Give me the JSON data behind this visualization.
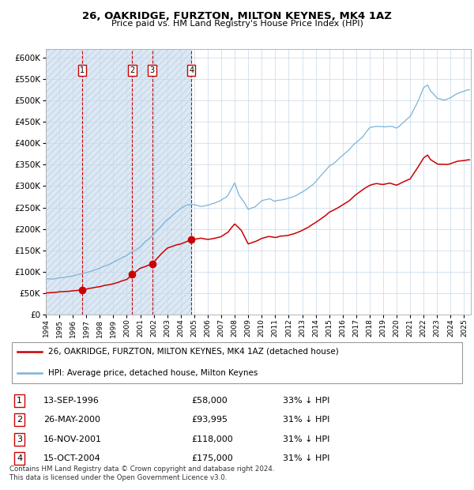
{
  "title1": "26, OAKRIDGE, FURZTON, MILTON KEYNES, MK4 1AZ",
  "title2": "Price paid vs. HM Land Registry's House Price Index (HPI)",
  "legend_line1": "26, OAKRIDGE, FURZTON, MILTON KEYNES, MK4 1AZ (detached house)",
  "legend_line2": "HPI: Average price, detached house, Milton Keynes",
  "footer1": "Contains HM Land Registry data © Crown copyright and database right 2024.",
  "footer2": "This data is licensed under the Open Government Licence v3.0.",
  "sale_dates": [
    1996.71,
    2000.4,
    2001.88,
    2004.79
  ],
  "sale_prices": [
    58000,
    93995,
    118000,
    175000
  ],
  "sale_labels": [
    "1",
    "2",
    "3",
    "4"
  ],
  "sale_info": [
    [
      "1",
      "13-SEP-1996",
      "£58,000",
      "33% ↓ HPI"
    ],
    [
      "2",
      "26-MAY-2000",
      "£93,995",
      "31% ↓ HPI"
    ],
    [
      "3",
      "16-NOV-2001",
      "£118,000",
      "31% ↓ HPI"
    ],
    [
      "4",
      "15-OCT-2004",
      "£175,000",
      "31% ↓ HPI"
    ]
  ],
  "hpi_color": "#7ab3d8",
  "price_color": "#cc0000",
  "shade_color": "#dce9f5",
  "hatch_color": "#c0d5e8",
  "plot_bg": "#ffffff",
  "grid_color": "#c8d8e8",
  "ylim": [
    0,
    620000
  ],
  "xlim_start": 1994.0,
  "xlim_end": 2025.5,
  "shade_end": 2004.79,
  "yticks": [
    0,
    50000,
    100000,
    150000,
    200000,
    250000,
    300000,
    350000,
    400000,
    450000,
    500000,
    550000,
    600000
  ],
  "xtick_start": 1994,
  "xtick_end": 2025
}
